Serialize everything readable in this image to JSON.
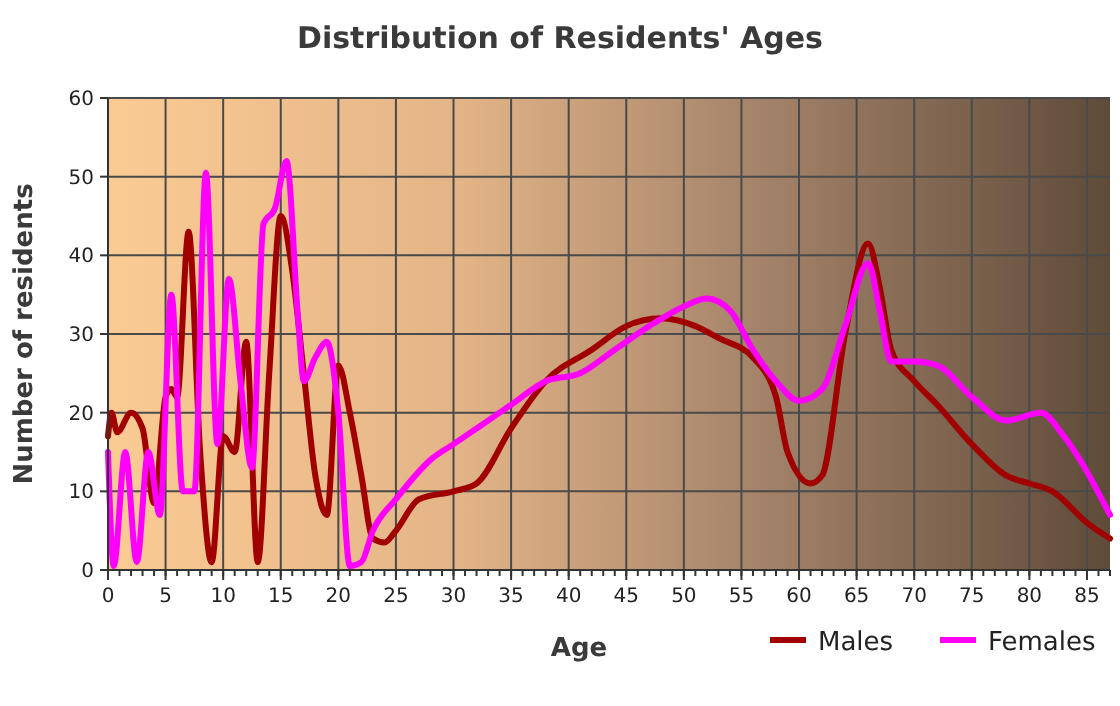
{
  "chart_data": {
    "type": "line",
    "title": "Distribution of Residents' Ages",
    "xlabel": "Age",
    "ylabel": "Number of residents",
    "xlim": [
      0,
      87
    ],
    "xticks": [
      0,
      5,
      10,
      15,
      20,
      25,
      30,
      35,
      40,
      45,
      50,
      55,
      60,
      65,
      70,
      75,
      80,
      85
    ],
    "ylim": [
      0,
      60
    ],
    "yticks": [
      0,
      10,
      20,
      30,
      40,
      50,
      60
    ],
    "grid": true,
    "legend": "bottom right",
    "line_style": "solid",
    "marker": "none",
    "series": [
      {
        "name": "Males",
        "color": "#a00000",
        "x": [
          0,
          0.3,
          0.8,
          2,
          3,
          4,
          5,
          5.5,
          6,
          7,
          8,
          9,
          10,
          11,
          12,
          13,
          14,
          15,
          16,
          17,
          18,
          19,
          20,
          21,
          22,
          23,
          24,
          25,
          27,
          30,
          32,
          35,
          38,
          42,
          45,
          48,
          51,
          53,
          56,
          58,
          59,
          61,
          62,
          64,
          66,
          67,
          68,
          70,
          72,
          75,
          78,
          80,
          82,
          85,
          87
        ],
        "values": [
          17,
          20,
          17.5,
          20,
          18,
          8.5,
          22,
          23,
          22,
          43,
          15,
          1,
          17,
          15,
          29,
          1,
          25,
          45,
          38,
          25,
          12,
          7,
          26,
          20,
          12,
          4,
          3.5,
          5,
          9,
          10,
          11,
          18,
          24,
          28,
          31,
          32,
          31,
          29.5,
          27,
          22,
          15,
          11,
          12,
          30,
          41.5,
          36,
          28,
          24,
          21,
          16,
          12,
          11,
          10,
          6,
          4
        ]
      },
      {
        "name": "Females",
        "color": "#ff00ff",
        "x": [
          0,
          0.5,
          1.5,
          2.5,
          3.5,
          4.5,
          5.5,
          6.5,
          7.5,
          8.5,
          9.5,
          10.5,
          11.5,
          12.5,
          13.5,
          14.5,
          15.5,
          16.5,
          17,
          18,
          19,
          20,
          21,
          22,
          23,
          25,
          28,
          30,
          32,
          35,
          38,
          41,
          44,
          47,
          50,
          52,
          54,
          56,
          58,
          60,
          62,
          64,
          66,
          67,
          68,
          70,
          72,
          75,
          78,
          81,
          83,
          87
        ],
        "values": [
          15,
          0.5,
          15,
          1,
          15,
          7,
          35,
          10,
          10,
          50.5,
          16,
          37,
          24,
          13,
          44,
          46,
          52,
          32,
          24,
          27,
          29,
          20,
          0.5,
          1,
          5,
          9,
          14,
          16,
          18,
          21,
          24,
          25,
          28,
          31,
          33.5,
          34.5,
          33,
          28,
          24,
          21.5,
          23,
          31,
          39,
          33,
          26.5,
          26.5,
          26,
          22,
          19,
          20,
          17,
          7
        ]
      }
    ]
  }
}
